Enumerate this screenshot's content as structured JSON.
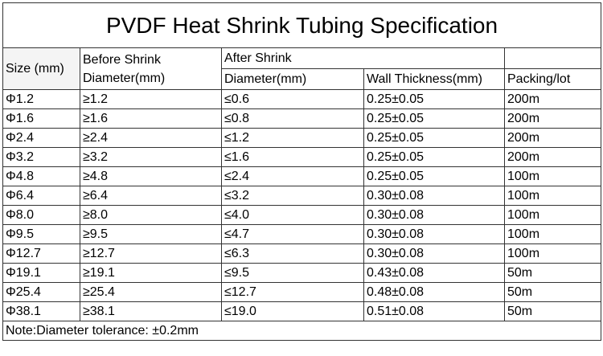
{
  "title": "PVDF Heat Shrink Tubing Specification",
  "headers": {
    "size": "Size (mm)",
    "before_line1": "Before Shrink",
    "before_line2": "Diameter(mm)",
    "after": "After Shrink",
    "after_diameter": "Diameter(mm)",
    "wall": "Wall Thickness(mm)",
    "packing": "Packing/lot"
  },
  "rows": [
    {
      "size": "Φ1.2",
      "before": "≥1.2",
      "after": "≤0.6",
      "wall": "0.25±0.05",
      "packing": "200m"
    },
    {
      "size": "Φ1.6",
      "before": "≥1.6",
      "after": "≤0.8",
      "wall": "0.25±0.05",
      "packing": "200m"
    },
    {
      "size": "Φ2.4",
      "before": "≥2.4",
      "after": "≤1.2",
      "wall": "0.25±0.05",
      "packing": "200m"
    },
    {
      "size": "Φ3.2",
      "before": "≥3.2",
      "after": "≤1.6",
      "wall": "0.25±0.05",
      "packing": "200m"
    },
    {
      "size": "Φ4.8",
      "before": "≥4.8",
      "after": "≤2.4",
      "wall": "0.25±0.05",
      "packing": "100m"
    },
    {
      "size": "Φ6.4",
      "before": "≥6.4",
      "after": "≤3.2",
      "wall": "0.30±0.08",
      "packing": "100m"
    },
    {
      "size": "Φ8.0",
      "before": "≥8.0",
      "after": "≤4.0",
      "wall": "0.30±0.08",
      "packing": "100m"
    },
    {
      "size": "Φ9.5",
      "before": "≥9.5",
      "after": "≤4.7",
      "wall": "0.30±0.08",
      "packing": "100m"
    },
    {
      "size": "Φ12.7",
      "before": "≥12.7",
      "after": "≤6.3",
      "wall": "0.30±0.08",
      "packing": "100m"
    },
    {
      "size": "Φ19.1",
      "before": "≥19.1",
      "after": "≤9.5",
      "wall": "0.43±0.08",
      "packing": "50m"
    },
    {
      "size": "Φ25.4",
      "before": "≥25.4",
      "after": "≤12.7",
      "wall": "0.48±0.08",
      "packing": "50m"
    },
    {
      "size": "Φ38.1",
      "before": "≥38.1",
      "after": "≤19.0",
      "wall": "0.51±0.08",
      "packing": "50m"
    }
  ],
  "note": "Note:Diameter tolerance: ±0.2mm"
}
